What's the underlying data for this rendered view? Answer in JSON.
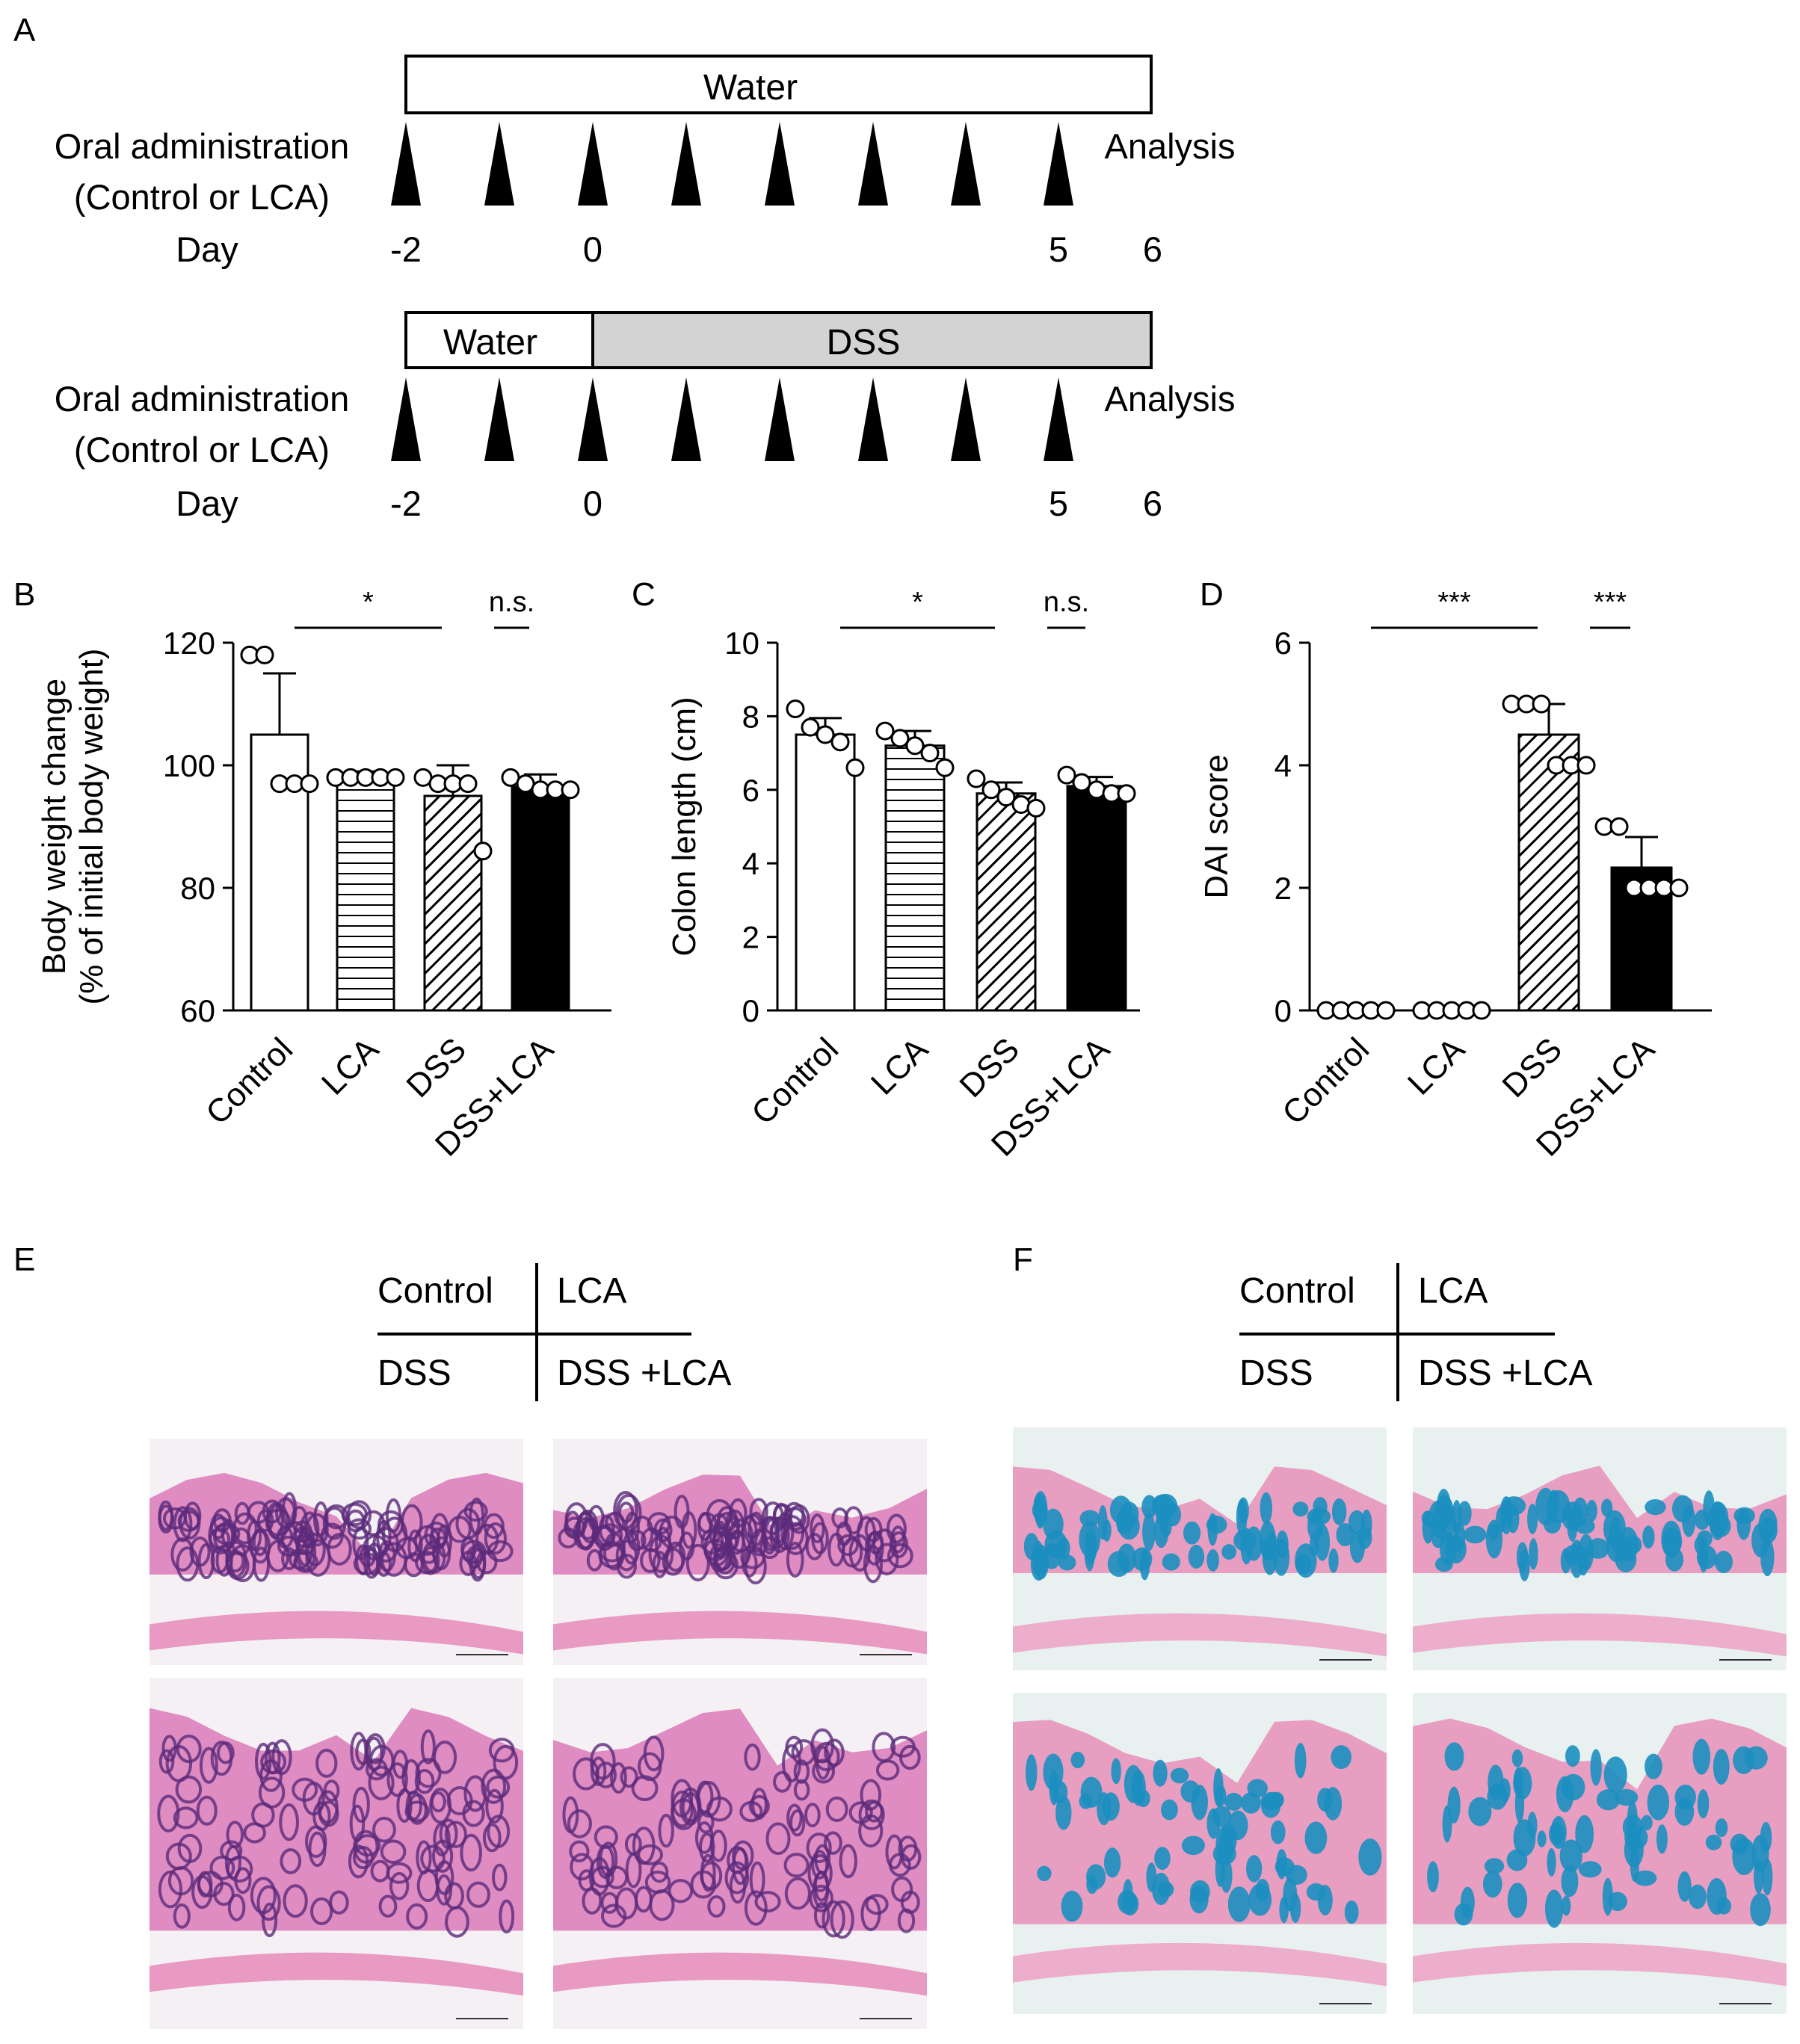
{
  "panelA": {
    "label": "A",
    "timelines": [
      {
        "oral_line1": "Oral administration",
        "oral_line2": "(Control or LCA)",
        "day_label": "Day",
        "analysis": "Analysis",
        "segments": [
          {
            "label": "Water",
            "fill": "#ffffff"
          }
        ],
        "days": [
          "-2",
          "0",
          "5",
          "6"
        ]
      },
      {
        "oral_line1": "Oral administration",
        "oral_line2": "(Control or LCA)",
        "day_label": "Day",
        "analysis": "Analysis",
        "segments": [
          {
            "label": "Water",
            "fill": "#ffffff"
          },
          {
            "label": "DSS",
            "fill": "#d3d3d3"
          }
        ],
        "days": [
          "-2",
          "0",
          "5",
          "6"
        ]
      }
    ]
  },
  "chart_data": [
    {
      "panel": "B",
      "type": "bar",
      "categories": [
        "Control",
        "LCA",
        "DSS",
        "DSS+LCA"
      ],
      "patterns": [
        "white",
        "horizontal",
        "diagonal",
        "black"
      ],
      "ylabel": "Body weight change",
      "ylabel2": "(% of initial body weight)",
      "ylim": [
        60,
        120
      ],
      "yticks": [
        "60",
        "80",
        "100",
        "120"
      ],
      "values": [
        105,
        98,
        95,
        96.5
      ],
      "errors": [
        10,
        1,
        5,
        2
      ],
      "points": [
        [
          118,
          118,
          97,
          97,
          97
        ],
        [
          98,
          98,
          98,
          98,
          98
        ],
        [
          98,
          97,
          97,
          97,
          86
        ],
        [
          98,
          97,
          96,
          96,
          96
        ]
      ],
      "significance": [
        {
          "from": 0,
          "to": 2,
          "label": "*"
        },
        {
          "from": 2,
          "to": 3,
          "label": "n.s."
        }
      ]
    },
    {
      "panel": "C",
      "type": "bar",
      "categories": [
        "Control",
        "LCA",
        "DSS",
        "DSS+LCA"
      ],
      "patterns": [
        "white",
        "horizontal",
        "diagonal",
        "black"
      ],
      "ylabel": "Colon length (cm)",
      "ylabel2": "",
      "ylim": [
        0,
        10
      ],
      "yticks": [
        "0",
        "2",
        "4",
        "6",
        "8",
        "10"
      ],
      "values": [
        7.5,
        7.2,
        5.9,
        6.1
      ],
      "errors": [
        0.45,
        0.4,
        0.3,
        0.25
      ],
      "points": [
        [
          8.2,
          7.7,
          7.5,
          7.3,
          6.6
        ],
        [
          7.6,
          7.4,
          7.2,
          7.0,
          6.6
        ],
        [
          6.3,
          6.0,
          5.8,
          5.6,
          5.5
        ],
        [
          6.4,
          6.2,
          6.0,
          5.9,
          5.9
        ]
      ],
      "significance": [
        {
          "from": 0,
          "to": 2,
          "label": "*"
        },
        {
          "from": 2,
          "to": 3,
          "label": "n.s."
        }
      ]
    },
    {
      "panel": "D",
      "type": "bar",
      "categories": [
        "Control",
        "LCA",
        "DSS",
        "DSS+LCA"
      ],
      "patterns": [
        "white",
        "horizontal",
        "diagonal",
        "black"
      ],
      "ylabel": "DAI score",
      "ylabel2": "",
      "ylim": [
        0,
        6
      ],
      "yticks": [
        "0",
        "2",
        "4",
        "6"
      ],
      "values": [
        0,
        0,
        4.5,
        2.33
      ],
      "errors": [
        0,
        0,
        0.5,
        0.5
      ],
      "points": [
        [
          0,
          0,
          0,
          0,
          0
        ],
        [
          0,
          0,
          0,
          0,
          0
        ],
        [
          5,
          5,
          5,
          4,
          4,
          4
        ],
        [
          3,
          3,
          2,
          2,
          2,
          2
        ]
      ],
      "significance": [
        {
          "from": 0,
          "to": 2,
          "label": "***"
        },
        {
          "from": 2,
          "to": 3,
          "label": "***"
        }
      ]
    }
  ],
  "panelE": {
    "label": "E",
    "legend": {
      "tl": "Control",
      "tr": "LCA",
      "bl": "DSS",
      "br": "DSS +LCA"
    },
    "stain": "HE",
    "colors": {
      "bg": "#f4f0f3",
      "tissue": "#d97ab8",
      "nuclei": "#5b2a7a",
      "muscle": "#e89ac2"
    }
  },
  "panelF": {
    "label": "F",
    "legend": {
      "tl": "Control",
      "tr": "LCA",
      "bl": "DSS",
      "br": "DSS +LCA"
    },
    "stain": "Alcian blue",
    "colors": {
      "bg": "#e8f0f0",
      "tissue": "#e88fb8",
      "goblet": "#1b8fc0",
      "muscle": "#ecaecb"
    }
  }
}
